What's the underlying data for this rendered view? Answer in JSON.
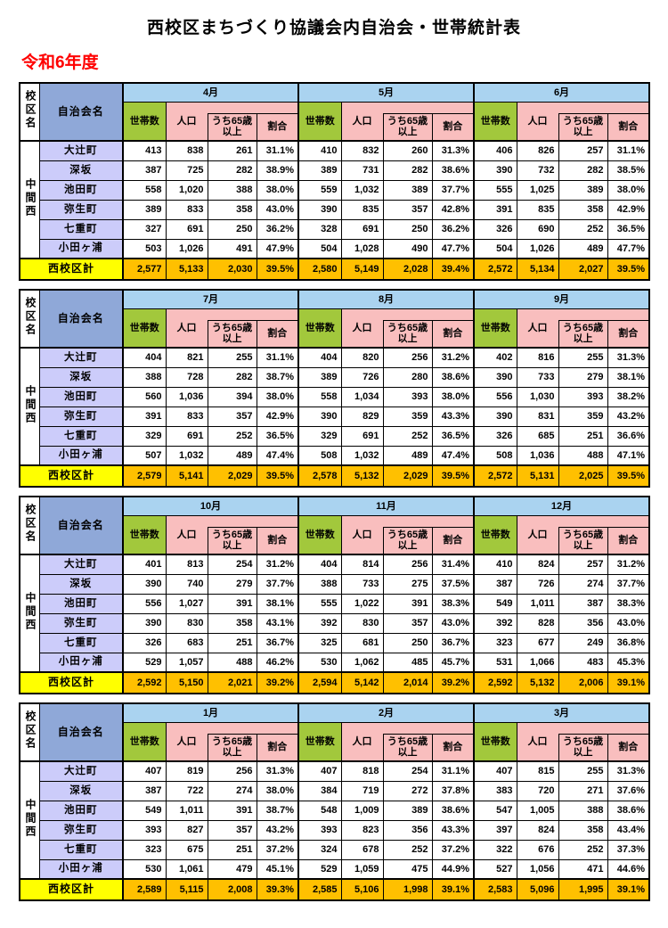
{
  "page": {
    "title": "西校区まちづくり協議会内自治会・世帯統計表",
    "fiscal_year": "令和6年度"
  },
  "colors": {
    "month_header": "#AAD3F0",
    "group_header": "#8FA8D8",
    "household_green": "#A2C83C",
    "pink": "#F9BEBE",
    "town_lavender": "#CCCCFA",
    "total_label_yellow": "#FFFF00",
    "total_value_orange": "#FFC000",
    "fiscal_year_red": "#FF0000"
  },
  "table": {
    "corner_header": "校区名",
    "name_col_header": "自治会名",
    "value_col_headers": [
      "世帯数",
      "人口",
      "うち65歳以上",
      "割合"
    ],
    "district": "中間西",
    "total_label": "西校区計",
    "blocks": [
      {
        "months": [
          "4月",
          "5月",
          "6月"
        ],
        "rows": [
          {
            "name": "大辻町",
            "values": [
              [
                "413",
                "838",
                "261",
                "31.1%"
              ],
              [
                "410",
                "832",
                "260",
                "31.3%"
              ],
              [
                "406",
                "826",
                "257",
                "31.1%"
              ]
            ]
          },
          {
            "name": "深坂",
            "values": [
              [
                "387",
                "725",
                "282",
                "38.9%"
              ],
              [
                "389",
                "731",
                "282",
                "38.6%"
              ],
              [
                "390",
                "732",
                "282",
                "38.5%"
              ]
            ]
          },
          {
            "name": "池田町",
            "values": [
              [
                "558",
                "1,020",
                "388",
                "38.0%"
              ],
              [
                "559",
                "1,032",
                "389",
                "37.7%"
              ],
              [
                "555",
                "1,025",
                "389",
                "38.0%"
              ]
            ]
          },
          {
            "name": "弥生町",
            "values": [
              [
                "389",
                "833",
                "358",
                "43.0%"
              ],
              [
                "390",
                "835",
                "357",
                "42.8%"
              ],
              [
                "391",
                "835",
                "358",
                "42.9%"
              ]
            ]
          },
          {
            "name": "七重町",
            "values": [
              [
                "327",
                "691",
                "250",
                "36.2%"
              ],
              [
                "328",
                "691",
                "250",
                "36.2%"
              ],
              [
                "326",
                "690",
                "252",
                "36.5%"
              ]
            ]
          },
          {
            "name": "小田ヶ浦",
            "values": [
              [
                "503",
                "1,026",
                "491",
                "47.9%"
              ],
              [
                "504",
                "1,028",
                "490",
                "47.7%"
              ],
              [
                "504",
                "1,026",
                "489",
                "47.7%"
              ]
            ]
          }
        ],
        "totals": [
          [
            "2,577",
            "5,133",
            "2,030",
            "39.5%"
          ],
          [
            "2,580",
            "5,149",
            "2,028",
            "39.4%"
          ],
          [
            "2,572",
            "5,134",
            "2,027",
            "39.5%"
          ]
        ]
      },
      {
        "months": [
          "7月",
          "8月",
          "9月"
        ],
        "rows": [
          {
            "name": "大辻町",
            "values": [
              [
                "404",
                "821",
                "255",
                "31.1%"
              ],
              [
                "404",
                "820",
                "256",
                "31.2%"
              ],
              [
                "402",
                "816",
                "255",
                "31.3%"
              ]
            ]
          },
          {
            "name": "深坂",
            "values": [
              [
                "388",
                "728",
                "282",
                "38.7%"
              ],
              [
                "389",
                "726",
                "280",
                "38.6%"
              ],
              [
                "390",
                "733",
                "279",
                "38.1%"
              ]
            ]
          },
          {
            "name": "池田町",
            "values": [
              [
                "560",
                "1,036",
                "394",
                "38.0%"
              ],
              [
                "558",
                "1,034",
                "393",
                "38.0%"
              ],
              [
                "556",
                "1,030",
                "393",
                "38.2%"
              ]
            ]
          },
          {
            "name": "弥生町",
            "values": [
              [
                "391",
                "833",
                "357",
                "42.9%"
              ],
              [
                "390",
                "829",
                "359",
                "43.3%"
              ],
              [
                "390",
                "831",
                "359",
                "43.2%"
              ]
            ]
          },
          {
            "name": "七重町",
            "values": [
              [
                "329",
                "691",
                "252",
                "36.5%"
              ],
              [
                "329",
                "691",
                "252",
                "36.5%"
              ],
              [
                "326",
                "685",
                "251",
                "36.6%"
              ]
            ]
          },
          {
            "name": "小田ヶ浦",
            "values": [
              [
                "507",
                "1,032",
                "489",
                "47.4%"
              ],
              [
                "508",
                "1,032",
                "489",
                "47.4%"
              ],
              [
                "508",
                "1,036",
                "488",
                "47.1%"
              ]
            ]
          }
        ],
        "totals": [
          [
            "2,579",
            "5,141",
            "2,029",
            "39.5%"
          ],
          [
            "2,578",
            "5,132",
            "2,029",
            "39.5%"
          ],
          [
            "2,572",
            "5,131",
            "2,025",
            "39.5%"
          ]
        ]
      },
      {
        "months": [
          "10月",
          "11月",
          "12月"
        ],
        "rows": [
          {
            "name": "大辻町",
            "values": [
              [
                "401",
                "813",
                "254",
                "31.2%"
              ],
              [
                "404",
                "814",
                "256",
                "31.4%"
              ],
              [
                "410",
                "824",
                "257",
                "31.2%"
              ]
            ]
          },
          {
            "name": "深坂",
            "values": [
              [
                "390",
                "740",
                "279",
                "37.7%"
              ],
              [
                "388",
                "733",
                "275",
                "37.5%"
              ],
              [
                "387",
                "726",
                "274",
                "37.7%"
              ]
            ]
          },
          {
            "name": "池田町",
            "values": [
              [
                "556",
                "1,027",
                "391",
                "38.1%"
              ],
              [
                "555",
                "1,022",
                "391",
                "38.3%"
              ],
              [
                "549",
                "1,011",
                "387",
                "38.3%"
              ]
            ]
          },
          {
            "name": "弥生町",
            "values": [
              [
                "390",
                "830",
                "358",
                "43.1%"
              ],
              [
                "392",
                "830",
                "357",
                "43.0%"
              ],
              [
                "392",
                "828",
                "356",
                "43.0%"
              ]
            ]
          },
          {
            "name": "七重町",
            "values": [
              [
                "326",
                "683",
                "251",
                "36.7%"
              ],
              [
                "325",
                "681",
                "250",
                "36.7%"
              ],
              [
                "323",
                "677",
                "249",
                "36.8%"
              ]
            ]
          },
          {
            "name": "小田ヶ浦",
            "values": [
              [
                "529",
                "1,057",
                "488",
                "46.2%"
              ],
              [
                "530",
                "1,062",
                "485",
                "45.7%"
              ],
              [
                "531",
                "1,066",
                "483",
                "45.3%"
              ]
            ]
          }
        ],
        "totals": [
          [
            "2,592",
            "5,150",
            "2,021",
            "39.2%"
          ],
          [
            "2,594",
            "5,142",
            "2,014",
            "39.2%"
          ],
          [
            "2,592",
            "5,132",
            "2,006",
            "39.1%"
          ]
        ]
      },
      {
        "months": [
          "1月",
          "2月",
          "3月"
        ],
        "rows": [
          {
            "name": "大辻町",
            "values": [
              [
                "407",
                "819",
                "256",
                "31.3%"
              ],
              [
                "407",
                "818",
                "254",
                "31.1%"
              ],
              [
                "407",
                "815",
                "255",
                "31.3%"
              ]
            ]
          },
          {
            "name": "深坂",
            "values": [
              [
                "387",
                "722",
                "274",
                "38.0%"
              ],
              [
                "384",
                "719",
                "272",
                "37.8%"
              ],
              [
                "383",
                "720",
                "271",
                "37.6%"
              ]
            ]
          },
          {
            "name": "池田町",
            "values": [
              [
                "549",
                "1,011",
                "391",
                "38.7%"
              ],
              [
                "548",
                "1,009",
                "389",
                "38.6%"
              ],
              [
                "547",
                "1,005",
                "388",
                "38.6%"
              ]
            ]
          },
          {
            "name": "弥生町",
            "values": [
              [
                "393",
                "827",
                "357",
                "43.2%"
              ],
              [
                "393",
                "823",
                "356",
                "43.3%"
              ],
              [
                "397",
                "824",
                "358",
                "43.4%"
              ]
            ]
          },
          {
            "name": "七重町",
            "values": [
              [
                "323",
                "675",
                "251",
                "37.2%"
              ],
              [
                "324",
                "678",
                "252",
                "37.2%"
              ],
              [
                "322",
                "676",
                "252",
                "37.3%"
              ]
            ]
          },
          {
            "name": "小田ヶ浦",
            "values": [
              [
                "530",
                "1,061",
                "479",
                "45.1%"
              ],
              [
                "529",
                "1,059",
                "475",
                "44.9%"
              ],
              [
                "527",
                "1,056",
                "471",
                "44.6%"
              ]
            ]
          }
        ],
        "totals": [
          [
            "2,589",
            "5,115",
            "2,008",
            "39.3%"
          ],
          [
            "2,585",
            "5,106",
            "1,998",
            "39.1%"
          ],
          [
            "2,583",
            "5,096",
            "1,995",
            "39.1%"
          ]
        ]
      }
    ]
  }
}
